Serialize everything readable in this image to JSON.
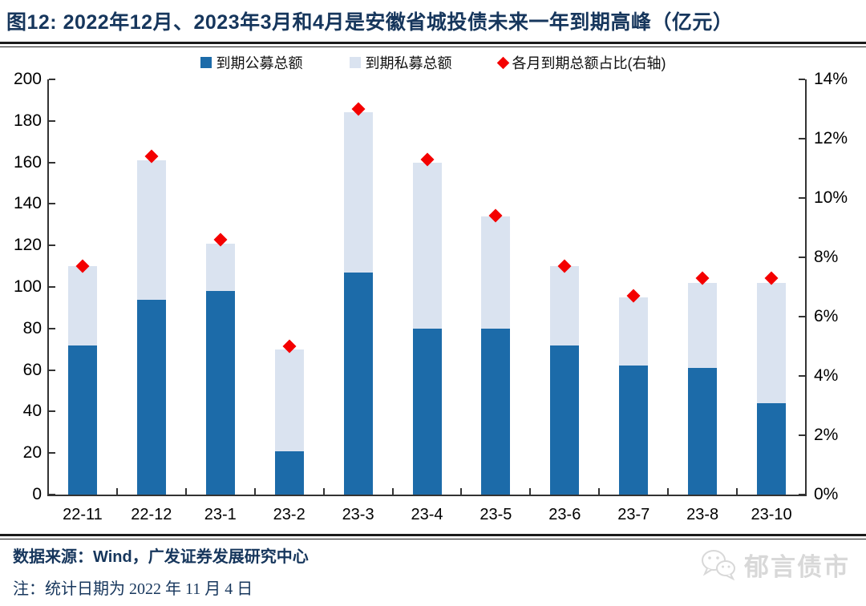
{
  "title": "图12: 2022年12月、2023年3月和4月是安徽省城投债未来一年到期高峰（亿元）",
  "chart_data": {
    "type": "bar",
    "subtype": "stacked-bars-with-scatter-overlay",
    "title": "图12: 2022年12月、2023年3月和4月是安徽省城投债未来一年到期高峰（亿元）",
    "categories": [
      "22-11",
      "22-12",
      "23-1",
      "23-2",
      "23-3",
      "23-4",
      "23-5",
      "23-6",
      "23-7",
      "23-8",
      "23-10"
    ],
    "series": [
      {
        "name": "到期公募总额",
        "type": "bar",
        "stacked": true,
        "axis": "left",
        "color": "#1c6ba9",
        "values": [
          72,
          94,
          98,
          21,
          107,
          80,
          80,
          72,
          62,
          61,
          44
        ]
      },
      {
        "name": "到期私募总额",
        "type": "bar",
        "stacked": true,
        "axis": "left",
        "color": "#dae3f0",
        "values": [
          38,
          67,
          23,
          49,
          77,
          80,
          54,
          38,
          33,
          41,
          58
        ]
      },
      {
        "name": "各月到期总额占比(右轴)",
        "type": "scatter",
        "marker": "diamond",
        "axis": "right",
        "color": "#f40000",
        "values": [
          7.7,
          11.4,
          8.6,
          5.0,
          13.0,
          11.3,
          9.4,
          7.7,
          6.7,
          7.3,
          7.3
        ]
      }
    ],
    "stacked_totals": [
      110,
      161,
      121,
      70,
      184,
      160,
      134,
      110,
      95,
      102,
      102
    ],
    "left_axis": {
      "min": 0,
      "max": 200,
      "step": 20
    },
    "right_axis": {
      "min": 0,
      "max": 14,
      "step": 2,
      "unit": "%"
    },
    "grid": false,
    "legend_position": "top"
  },
  "colors": {
    "title_navy": "#16365c",
    "public_bar": "#1c6ba9",
    "private_bar": "#dae3f0",
    "pct_diamond": "#f40000",
    "axis": "#333333",
    "watermark_gray": "#d8d8d8"
  },
  "footer": {
    "source": "数据来源：Wind，广发证券发展研究中心",
    "note": "注：统计日期为 2022 年 11 月 4 日"
  },
  "watermark": {
    "icon": "wechat-icon",
    "text": "郁言债市"
  }
}
